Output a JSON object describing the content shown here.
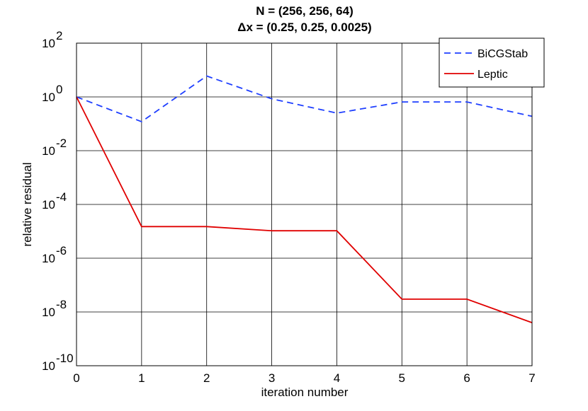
{
  "chart_data": {
    "type": "line",
    "title_lines": [
      "N = (256, 256, 64)",
      "Δx = (0.25, 0.25, 0.0025)"
    ],
    "xlabel": "iteration number",
    "ylabel": "relative residual",
    "x": [
      0,
      1,
      2,
      3,
      4,
      5,
      6,
      7
    ],
    "xticks": [
      "0",
      "1",
      "2",
      "3",
      "4",
      "5",
      "6",
      "7"
    ],
    "xlim": [
      0,
      7
    ],
    "yscale": "log",
    "ylim": [
      1e-10,
      100
    ],
    "ytick_exponents": [
      "-10",
      "-8",
      "-6",
      "-4",
      "-2",
      "0",
      "2"
    ],
    "ytick_base": "10",
    "grid": true,
    "legend_position": "top-right",
    "series": [
      {
        "name": "BiCGStab",
        "color": "#1f3fff",
        "style": "dashed",
        "values": [
          1.0,
          0.12,
          6.0,
          0.85,
          0.25,
          0.65,
          0.65,
          0.19
        ]
      },
      {
        "name": "Leptic",
        "color": "#e00000",
        "style": "solid",
        "values": [
          1.0,
          1.5e-05,
          1.5e-05,
          1.05e-05,
          1.05e-05,
          3e-08,
          3e-08,
          4e-09
        ]
      }
    ]
  }
}
